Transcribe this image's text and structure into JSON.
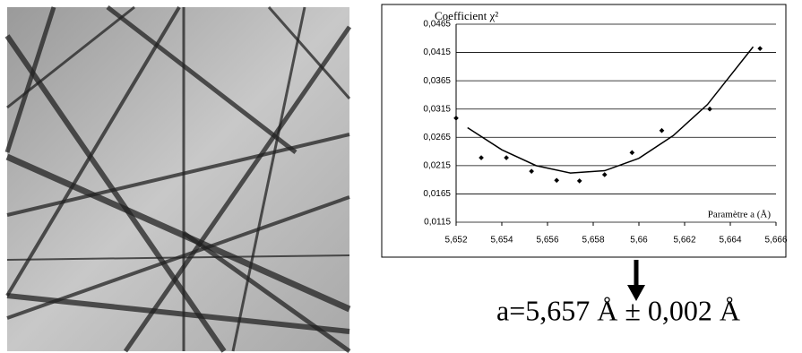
{
  "chart_data": {
    "type": "scatter",
    "y_label": "Coefficient χ²",
    "x_label": "Paramètre a (Å)",
    "annotation": "a=5,657 Å ± 0,002 Å",
    "xlim": [
      5.652,
      5.666
    ],
    "ylim": [
      0.0115,
      0.0465
    ],
    "xticks": [
      {
        "value": 5.652,
        "label": "5,652"
      },
      {
        "value": 5.654,
        "label": "5,654"
      },
      {
        "value": 5.656,
        "label": "5,656"
      },
      {
        "value": 5.658,
        "label": "5,658"
      },
      {
        "value": 5.66,
        "label": "5,66"
      },
      {
        "value": 5.662,
        "label": "5,662"
      },
      {
        "value": 5.664,
        "label": "5,664"
      },
      {
        "value": 5.666,
        "label": "5,666"
      }
    ],
    "yticks": [
      {
        "value": 0.0115,
        "label": "0,0115"
      },
      {
        "value": 0.0165,
        "label": "0,0165"
      },
      {
        "value": 0.0215,
        "label": "0,0215"
      },
      {
        "value": 0.0265,
        "label": "0,0265"
      },
      {
        "value": 0.0315,
        "label": "0,0315"
      },
      {
        "value": 0.0365,
        "label": "0,0365"
      },
      {
        "value": 0.0415,
        "label": "0,0415"
      },
      {
        "value": 0.0465,
        "label": "0,0465"
      }
    ],
    "grid": true,
    "points": {
      "color": "#000000",
      "x": [
        5.652,
        5.6531,
        5.6542,
        5.6553,
        5.6564,
        5.6574,
        5.6585,
        5.6597,
        5.661,
        5.6631,
        5.6653
      ],
      "y": [
        0.0299,
        0.0229,
        0.0229,
        0.0205,
        0.0189,
        0.0188,
        0.0199,
        0.0238,
        0.0277,
        0.0315,
        0.0422
      ]
    },
    "fit": {
      "color": "#000000",
      "x": [
        5.6525,
        5.654,
        5.6555,
        5.657,
        5.6585,
        5.66,
        5.6615,
        5.663,
        5.665
      ],
      "y": [
        0.0282,
        0.0243,
        0.0215,
        0.0202,
        0.0206,
        0.0228,
        0.0268,
        0.0323,
        0.0425
      ]
    }
  }
}
